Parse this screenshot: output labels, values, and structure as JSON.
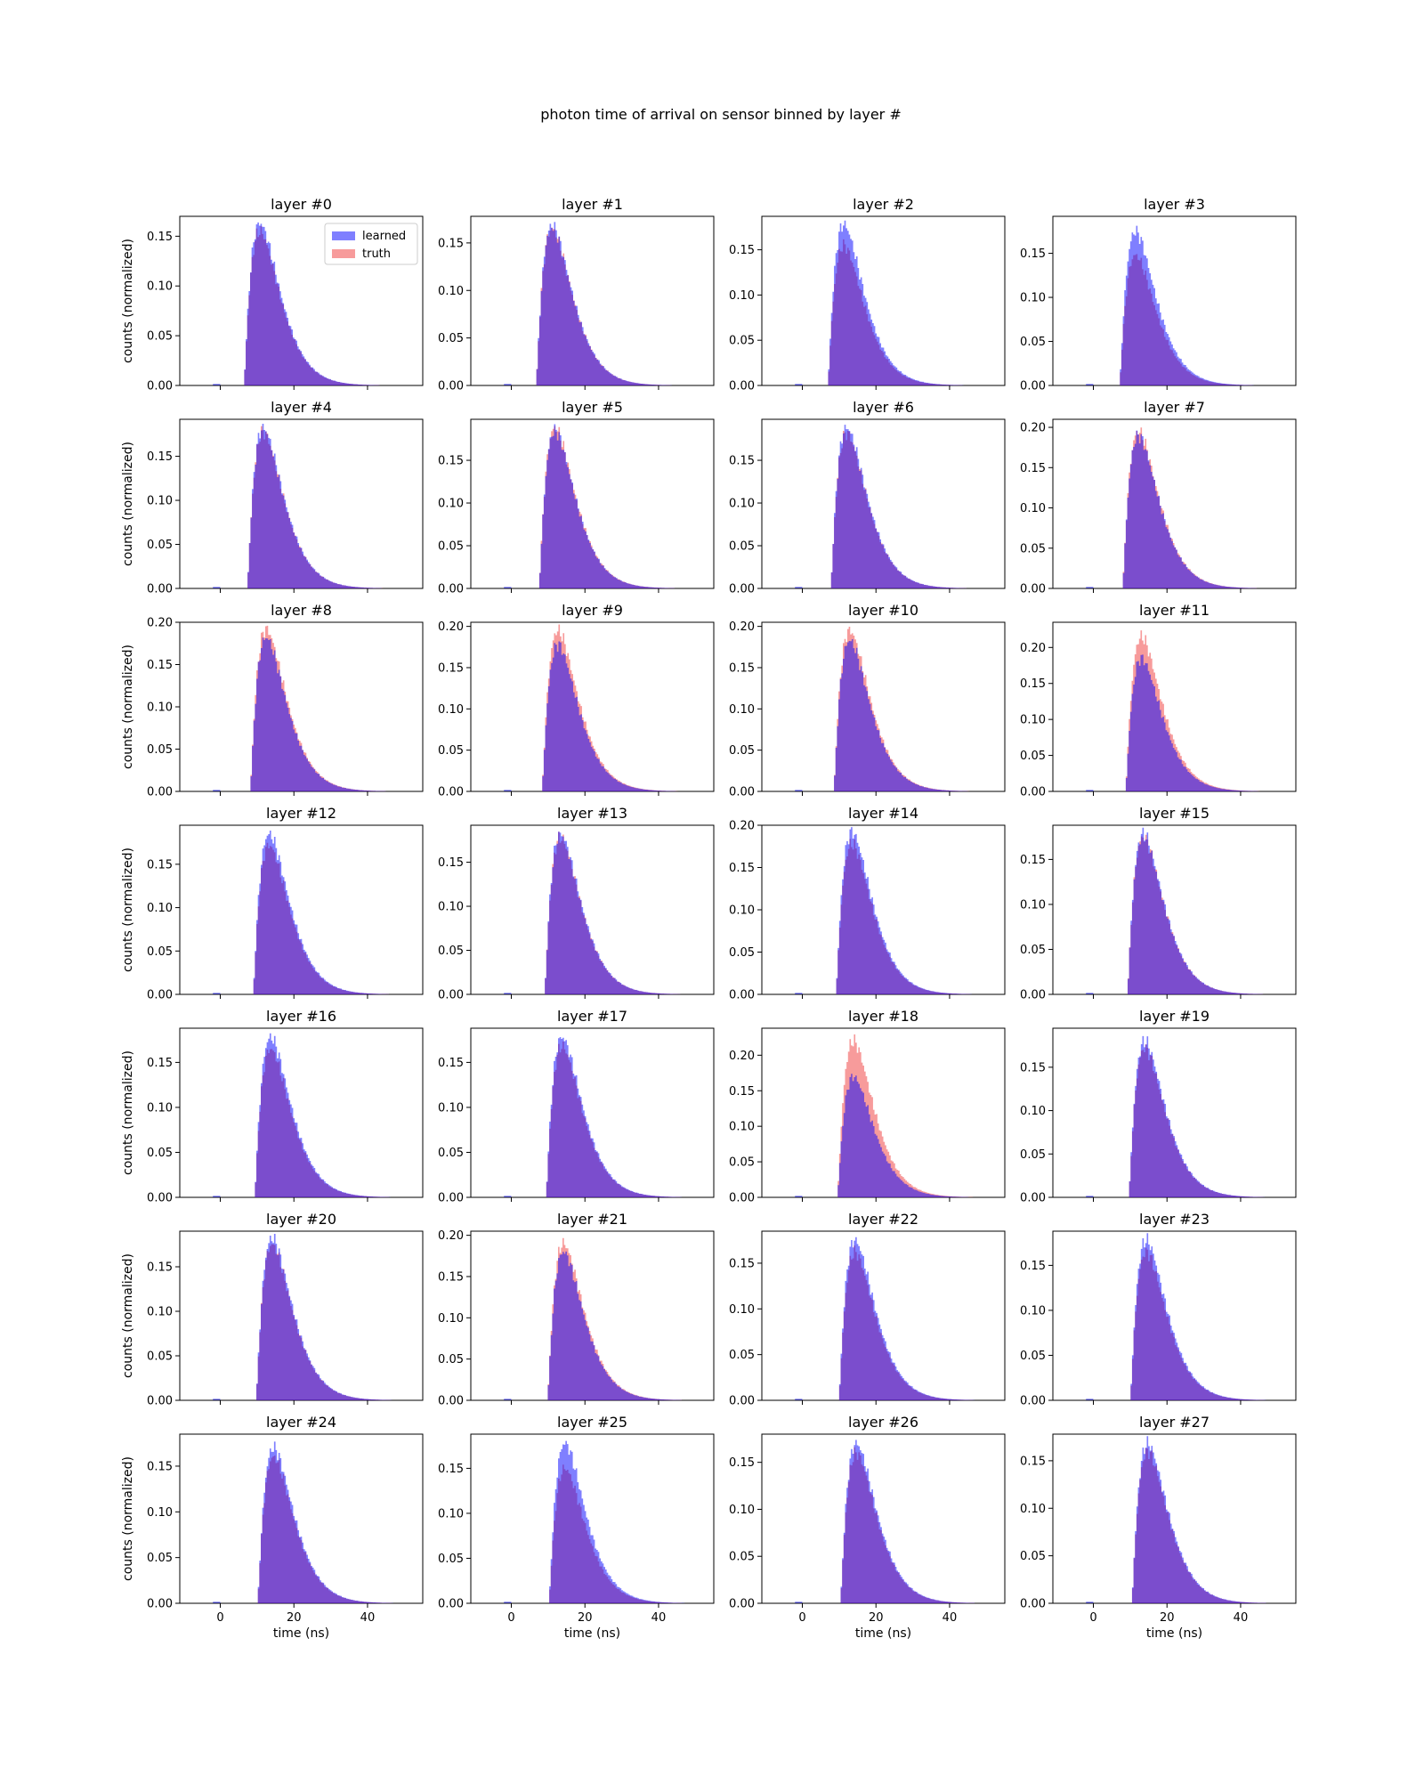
{
  "figure": {
    "suptitle": "photon time of arrival on sensor binned by layer #",
    "ylabel": "counts (normalized)",
    "xlabel": "time (ns)",
    "legend": {
      "position": "upper right",
      "entries": [
        "learned",
        "truth"
      ]
    },
    "colors": {
      "learned": "#0000ff",
      "truth": "#ee2222"
    }
  },
  "chart_data": {
    "type": "bar",
    "subtype": "overlaid-histogram-grid",
    "grid": {
      "rows": 7,
      "cols": 4
    },
    "x_label": "time (ns)",
    "y_label": "counts (normalized)",
    "xlim": [
      -11,
      55
    ],
    "xticks": [
      0,
      20,
      40
    ],
    "xtick_labels": [
      "0",
      "20",
      "40"
    ],
    "grid_lines": false,
    "series_names": [
      "learned",
      "truth"
    ],
    "panels": [
      {
        "title": "layer #0",
        "onset": 6.5,
        "peak_learned": 0.163,
        "peak_truth": 0.155,
        "ylim": [
          0,
          0.17
        ],
        "yticks": [
          0,
          0.05,
          0.1,
          0.15
        ],
        "ytick_labels": [
          "0.00",
          "0.05",
          "0.10",
          "0.15"
        ]
      },
      {
        "title": "layer #1",
        "onset": 6.8,
        "peak_learned": 0.168,
        "peak_truth": 0.165,
        "ylim": [
          0,
          0.178
        ],
        "yticks": [
          0,
          0.05,
          0.1,
          0.15
        ],
        "ytick_labels": [
          "0.00",
          "0.05",
          "0.10",
          "0.15"
        ]
      },
      {
        "title": "layer #2",
        "onset": 7.0,
        "peak_learned": 0.178,
        "peak_truth": 0.155,
        "ylim": [
          0,
          0.187
        ],
        "yticks": [
          0,
          0.05,
          0.1,
          0.15
        ],
        "ytick_labels": [
          "0.00",
          "0.05",
          "0.10",
          "0.15"
        ]
      },
      {
        "title": "layer #3",
        "onset": 7.2,
        "peak_learned": 0.175,
        "peak_truth": 0.148,
        "ylim": [
          0,
          0.192
        ],
        "yticks": [
          0,
          0.05,
          0.1,
          0.15
        ],
        "ytick_labels": [
          "0.00",
          "0.05",
          "0.10",
          "0.15"
        ]
      },
      {
        "title": "layer #4",
        "onset": 7.4,
        "peak_learned": 0.182,
        "peak_truth": 0.178,
        "ylim": [
          0,
          0.192
        ],
        "yticks": [
          0,
          0.05,
          0.1,
          0.15
        ],
        "ytick_labels": [
          "0.00",
          "0.05",
          "0.10",
          "0.15"
        ]
      },
      {
        "title": "layer #5",
        "onset": 7.6,
        "peak_learned": 0.185,
        "peak_truth": 0.188,
        "ylim": [
          0,
          0.198
        ],
        "yticks": [
          0,
          0.05,
          0.1,
          0.15
        ],
        "ytick_labels": [
          "0.00",
          "0.05",
          "0.10",
          "0.15"
        ]
      },
      {
        "title": "layer #6",
        "onset": 7.8,
        "peak_learned": 0.188,
        "peak_truth": 0.182,
        "ylim": [
          0,
          0.198
        ],
        "yticks": [
          0,
          0.05,
          0.1,
          0.15
        ],
        "ytick_labels": [
          "0.00",
          "0.05",
          "0.10",
          "0.15"
        ]
      },
      {
        "title": "layer #7",
        "onset": 8.0,
        "peak_learned": 0.19,
        "peak_truth": 0.195,
        "ylim": [
          0,
          0.21
        ],
        "yticks": [
          0,
          0.05,
          0.1,
          0.15,
          0.2
        ],
        "ytick_labels": [
          "0.00",
          "0.05",
          "0.10",
          "0.15",
          "0.20"
        ]
      },
      {
        "title": "layer #8",
        "onset": 8.2,
        "peak_learned": 0.182,
        "peak_truth": 0.192,
        "ylim": [
          0,
          0.2
        ],
        "yticks": [
          0,
          0.05,
          0.1,
          0.15,
          0.2
        ],
        "ytick_labels": [
          "0.00",
          "0.05",
          "0.10",
          "0.15",
          "0.20"
        ]
      },
      {
        "title": "layer #9",
        "onset": 8.4,
        "peak_learned": 0.178,
        "peak_truth": 0.195,
        "ylim": [
          0,
          0.205
        ],
        "yticks": [
          0,
          0.05,
          0.1,
          0.15,
          0.2
        ],
        "ytick_labels": [
          "0.00",
          "0.05",
          "0.10",
          "0.15",
          "0.20"
        ]
      },
      {
        "title": "layer #10",
        "onset": 8.6,
        "peak_learned": 0.183,
        "peak_truth": 0.195,
        "ylim": [
          0,
          0.205
        ],
        "yticks": [
          0,
          0.05,
          0.1,
          0.15,
          0.2
        ],
        "ytick_labels": [
          "0.00",
          "0.05",
          "0.10",
          "0.15",
          "0.20"
        ]
      },
      {
        "title": "layer #11",
        "onset": 8.8,
        "peak_learned": 0.185,
        "peak_truth": 0.215,
        "ylim": [
          0,
          0.235
        ],
        "yticks": [
          0,
          0.05,
          0.1,
          0.15,
          0.2
        ],
        "ytick_labels": [
          "0.00",
          "0.05",
          "0.10",
          "0.15",
          "0.20"
        ]
      },
      {
        "title": "layer #12",
        "onset": 9.0,
        "peak_learned": 0.185,
        "peak_truth": 0.172,
        "ylim": [
          0,
          0.195
        ],
        "yticks": [
          0,
          0.05,
          0.1,
          0.15
        ],
        "ytick_labels": [
          "0.00",
          "0.05",
          "0.10",
          "0.15"
        ]
      },
      {
        "title": "layer #13",
        "onset": 9.1,
        "peak_learned": 0.182,
        "peak_truth": 0.178,
        "ylim": [
          0,
          0.192
        ],
        "yticks": [
          0,
          0.05,
          0.1,
          0.15
        ],
        "ytick_labels": [
          "0.00",
          "0.05",
          "0.10",
          "0.15"
        ]
      },
      {
        "title": "layer #14",
        "onset": 9.2,
        "peak_learned": 0.192,
        "peak_truth": 0.178,
        "ylim": [
          0,
          0.2
        ],
        "yticks": [
          0,
          0.05,
          0.1,
          0.15,
          0.2
        ],
        "ytick_labels": [
          "0.00",
          "0.05",
          "0.10",
          "0.15",
          "0.20"
        ]
      },
      {
        "title": "layer #15",
        "onset": 9.3,
        "peak_learned": 0.178,
        "peak_truth": 0.175,
        "ylim": [
          0,
          0.188
        ],
        "yticks": [
          0,
          0.05,
          0.1,
          0.15
        ],
        "ytick_labels": [
          "0.00",
          "0.05",
          "0.10",
          "0.15"
        ]
      },
      {
        "title": "layer #16",
        "onset": 9.4,
        "peak_learned": 0.178,
        "peak_truth": 0.165,
        "ylim": [
          0,
          0.188
        ],
        "yticks": [
          0,
          0.05,
          0.1,
          0.15
        ],
        "ytick_labels": [
          "0.00",
          "0.05",
          "0.10",
          "0.15"
        ]
      },
      {
        "title": "layer #17",
        "onset": 9.5,
        "peak_learned": 0.178,
        "peak_truth": 0.168,
        "ylim": [
          0,
          0.188
        ],
        "yticks": [
          0,
          0.05,
          0.1,
          0.15
        ],
        "ytick_labels": [
          "0.00",
          "0.05",
          "0.10",
          "0.15"
        ]
      },
      {
        "title": "layer #18",
        "onset": 9.6,
        "peak_learned": 0.17,
        "peak_truth": 0.22,
        "ylim": [
          0,
          0.238
        ],
        "yticks": [
          0,
          0.05,
          0.1,
          0.15,
          0.2
        ],
        "ytick_labels": [
          "0.00",
          "0.05",
          "0.10",
          "0.15",
          "0.20"
        ]
      },
      {
        "title": "layer #19",
        "onset": 9.7,
        "peak_learned": 0.18,
        "peak_truth": 0.172,
        "ylim": [
          0,
          0.195
        ],
        "yticks": [
          0,
          0.05,
          0.1,
          0.15
        ],
        "ytick_labels": [
          "0.00",
          "0.05",
          "0.10",
          "0.15"
        ]
      },
      {
        "title": "layer #20",
        "onset": 9.8,
        "peak_learned": 0.182,
        "peak_truth": 0.175,
        "ylim": [
          0,
          0.19
        ],
        "yticks": [
          0,
          0.05,
          0.1,
          0.15
        ],
        "ytick_labels": [
          "0.00",
          "0.05",
          "0.10",
          "0.15"
        ]
      },
      {
        "title": "layer #21",
        "onset": 9.9,
        "peak_learned": 0.18,
        "peak_truth": 0.19,
        "ylim": [
          0,
          0.205
        ],
        "yticks": [
          0,
          0.05,
          0.1,
          0.15,
          0.2
        ],
        "ytick_labels": [
          "0.00",
          "0.05",
          "0.10",
          "0.15",
          "0.20"
        ]
      },
      {
        "title": "layer #22",
        "onset": 10.0,
        "peak_learned": 0.175,
        "peak_truth": 0.162,
        "ylim": [
          0,
          0.185
        ],
        "yticks": [
          0,
          0.05,
          0.1,
          0.15
        ],
        "ytick_labels": [
          "0.00",
          "0.05",
          "0.10",
          "0.15"
        ]
      },
      {
        "title": "layer #23",
        "onset": 10.1,
        "peak_learned": 0.178,
        "peak_truth": 0.165,
        "ylim": [
          0,
          0.188
        ],
        "yticks": [
          0,
          0.05,
          0.1,
          0.15
        ],
        "ytick_labels": [
          "0.00",
          "0.05",
          "0.10",
          "0.15"
        ]
      },
      {
        "title": "layer #24",
        "onset": 10.2,
        "peak_learned": 0.17,
        "peak_truth": 0.16,
        "ylim": [
          0,
          0.185
        ],
        "yticks": [
          0,
          0.05,
          0.1,
          0.15
        ],
        "ytick_labels": [
          "0.00",
          "0.05",
          "0.10",
          "0.15"
        ]
      },
      {
        "title": "layer #25",
        "onset": 10.3,
        "peak_learned": 0.178,
        "peak_truth": 0.15,
        "ylim": [
          0,
          0.188
        ],
        "yticks": [
          0,
          0.05,
          0.1,
          0.15
        ],
        "ytick_labels": [
          "0.00",
          "0.05",
          "0.10",
          "0.15"
        ]
      },
      {
        "title": "layer #26",
        "onset": 10.4,
        "peak_learned": 0.17,
        "peak_truth": 0.16,
        "ylim": [
          0,
          0.18
        ],
        "yticks": [
          0,
          0.05,
          0.1,
          0.15
        ],
        "ytick_labels": [
          "0.00",
          "0.05",
          "0.10",
          "0.15"
        ]
      },
      {
        "title": "layer #27",
        "onset": 10.5,
        "peak_learned": 0.168,
        "peak_truth": 0.16,
        "ylim": [
          0,
          0.178
        ],
        "yticks": [
          0,
          0.05,
          0.1,
          0.15
        ],
        "ytick_labels": [
          "0.00",
          "0.05",
          "0.10",
          "0.15"
        ]
      }
    ]
  }
}
